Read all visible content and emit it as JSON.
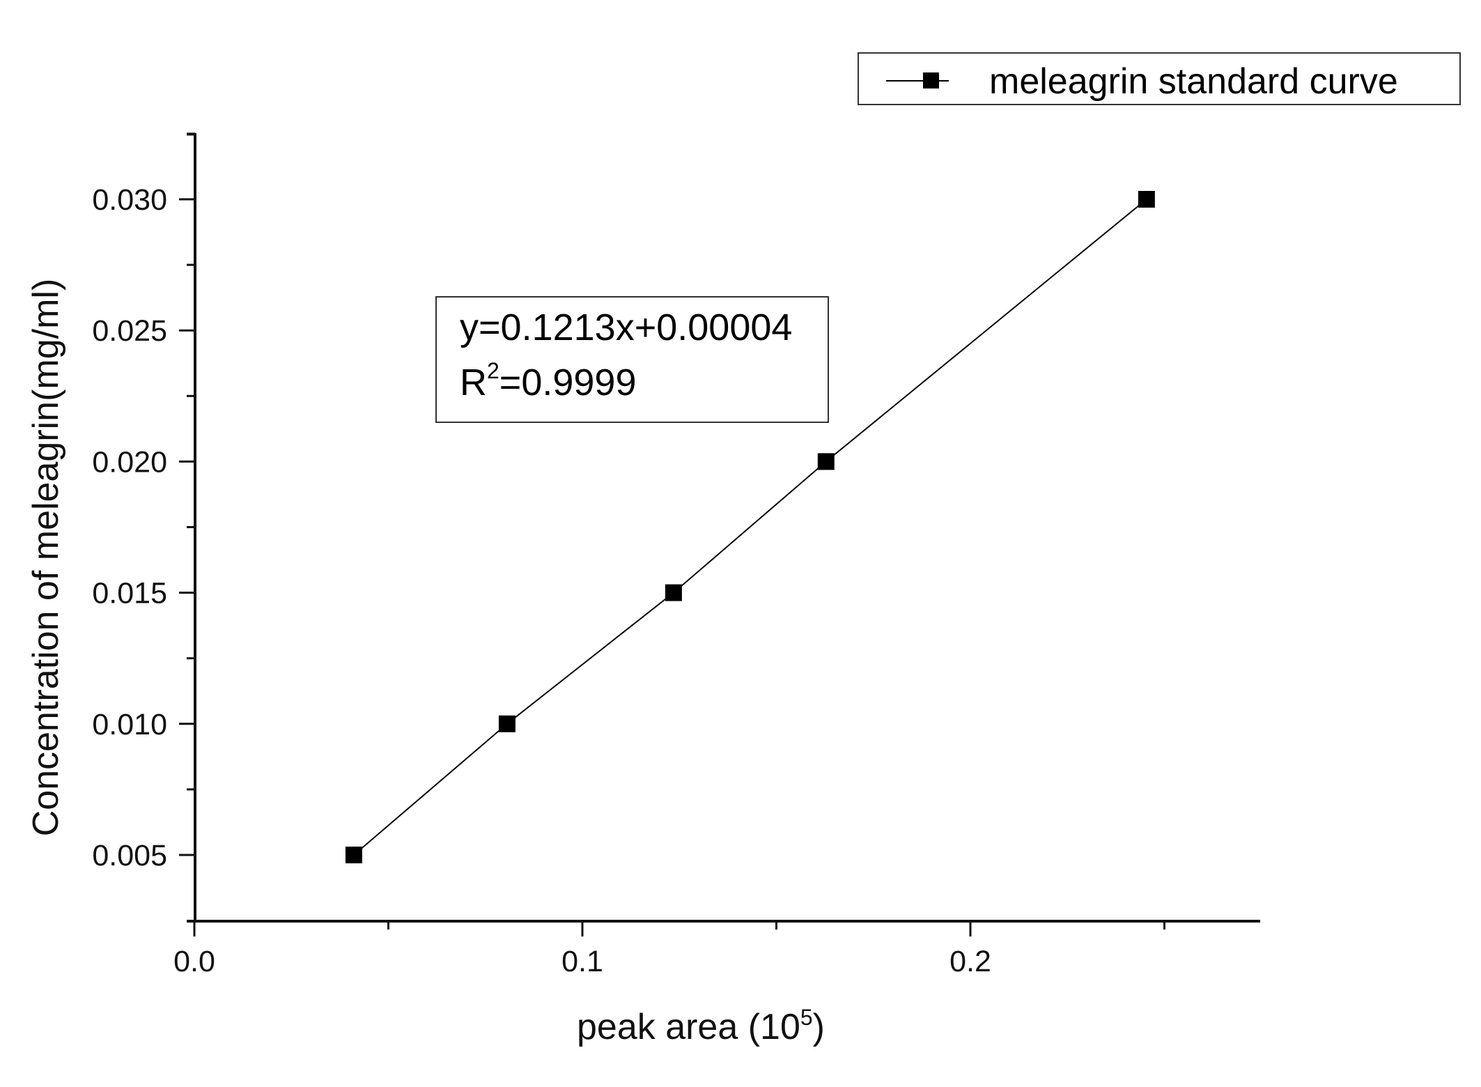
{
  "chart_data": {
    "type": "line",
    "title": "",
    "xlabel": "peak area (10",
    "xlabel_sup": "5",
    "xlabel_close": ")",
    "ylabel": "Concentration of meleagrin(mg/ml)",
    "xlim": [
      0.0,
      0.274
    ],
    "ylim": [
      0.0025,
      0.0325
    ],
    "x_ticks": [
      0.0,
      0.1,
      0.2
    ],
    "x_tick_labels": [
      "0.0",
      "0.1",
      "0.2"
    ],
    "x_minor_ticks": [
      0.05,
      0.15,
      0.25
    ],
    "y_ticks": [
      0.005,
      0.01,
      0.015,
      0.02,
      0.025,
      0.03
    ],
    "y_tick_labels": [
      "0.005",
      "0.010",
      "0.015",
      "0.020",
      "0.025",
      "0.030"
    ],
    "y_minor_ticks": [
      0.0075,
      0.0125,
      0.0175,
      0.0225,
      0.0275,
      0.0325
    ],
    "grid": false,
    "legend_position": "top-right, outside plot area",
    "series": [
      {
        "name": "meleagrin standard curve",
        "marker": "square",
        "line": "solid",
        "color": "#000000",
        "x": [
          0.0411,
          0.0806,
          0.1235,
          0.1628,
          0.2454
        ],
        "y": [
          0.005,
          0.01,
          0.015,
          0.02,
          0.03
        ]
      }
    ],
    "annotations": [
      {
        "text": "y=0.1213x+0.00004",
        "type": "fit-equation"
      },
      {
        "text_prefix": "R",
        "text_sup": "2",
        "text_suffix": "=0.9999",
        "type": "r-squared"
      }
    ]
  },
  "legend": {
    "label": "meleagrin standard curve"
  },
  "equation_box": {
    "line1": "y=0.1213x+0.00004",
    "line2_prefix": "R",
    "line2_sup": "2",
    "line2_suffix": "=0.9999"
  }
}
